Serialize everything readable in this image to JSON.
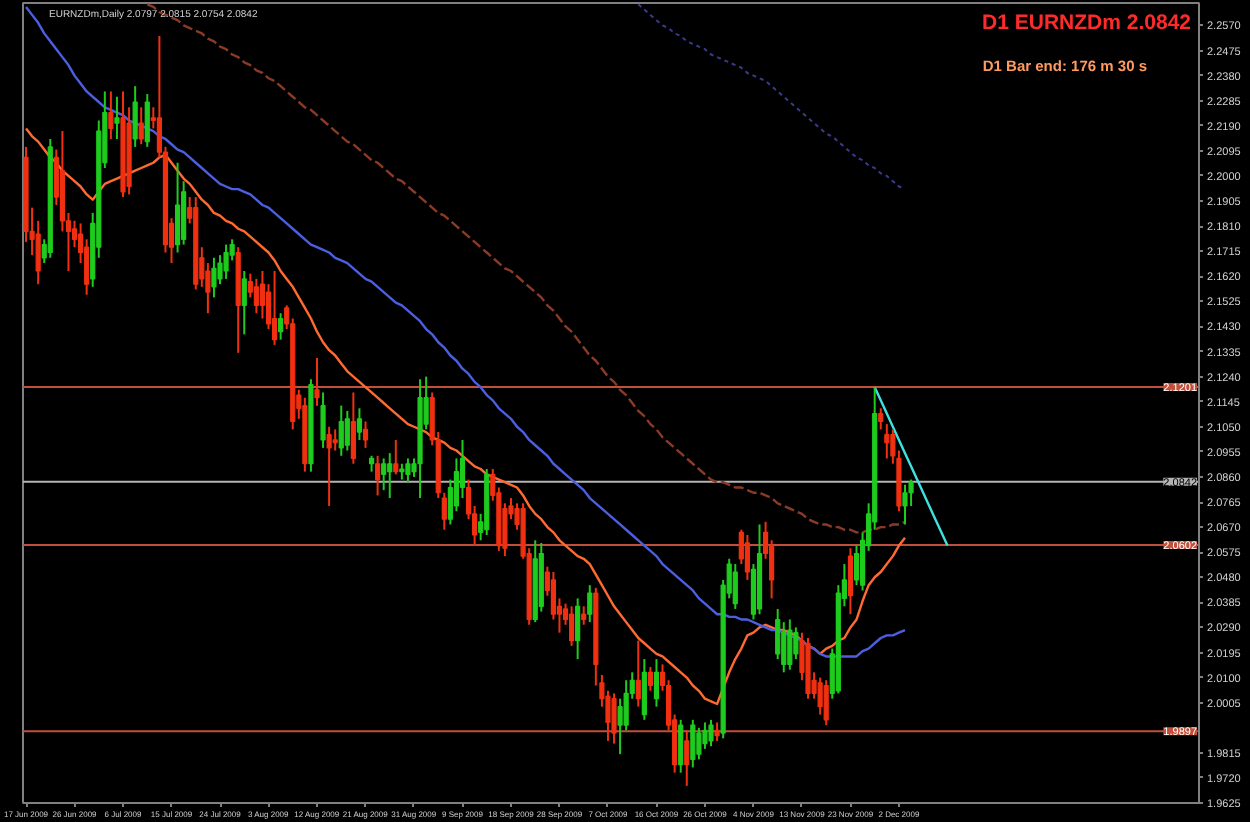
{
  "chart_data": {
    "type": "candlestick",
    "title": "EURNZDm,Daily 2.0797 2.0815 2.0754 2.0842",
    "annotations": [
      "D1 EURNZDm 2.0842",
      "D1 Bar end: 176 m 30 s"
    ],
    "categories": [
      "17 Jun 2009",
      null,
      null,
      null,
      null,
      null,
      null,
      null,
      "26 Jun 2009",
      null,
      null,
      null,
      null,
      null,
      null,
      null,
      "6 Jul 2009",
      null,
      null,
      null,
      null,
      null,
      null,
      null,
      "15 Jul 2009",
      null,
      null,
      null,
      null,
      null,
      null,
      null,
      "24 Jul 2009",
      null,
      null,
      null,
      null,
      null,
      null,
      null,
      "3 Aug 2009",
      null,
      null,
      null,
      null,
      null,
      null,
      null,
      "12 Aug 2009",
      null,
      null,
      null,
      null,
      null,
      null,
      null,
      "21 Aug 2009",
      null,
      null,
      null,
      null,
      null,
      null,
      null,
      "31 Aug 2009",
      null,
      null,
      null,
      null,
      null,
      null,
      null,
      "9 Sep 2009",
      null,
      null,
      null,
      null,
      null,
      null,
      null,
      "18 Sep 2009",
      null,
      null,
      null,
      null,
      null,
      null,
      null,
      "28 Sep 2009",
      null,
      null,
      null,
      null,
      null,
      null,
      null,
      "7 Oct 2009",
      null,
      null,
      null,
      null,
      null,
      null,
      null,
      "16 Oct 2009",
      null,
      null,
      null,
      null,
      null,
      null,
      null,
      "26 Oct 2009",
      null,
      null,
      null,
      null,
      null,
      null,
      null,
      "4 Nov 2009",
      null,
      null,
      null,
      null,
      null,
      null,
      null,
      "13 Nov 2009",
      null,
      null,
      null,
      null,
      null,
      null,
      null,
      "23 Nov 2009",
      null,
      null,
      null,
      null,
      null,
      null,
      null,
      "2 Dec 2009",
      null,
      null,
      null,
      null,
      null,
      null,
      null,
      null,
      null,
      null,
      null,
      null,
      null,
      null,
      null,
      null,
      null,
      null,
      null,
      null,
      null,
      null,
      null,
      null,
      null,
      null,
      null,
      null,
      null,
      null,
      null,
      null,
      null,
      null,
      null,
      null,
      null,
      null,
      null,
      null,
      null,
      null,
      null,
      null,
      null,
      null,
      null,
      null,
      null
    ],
    "ohlc": [
      [
        2.207,
        2.211,
        2.175,
        2.179
      ],
      [
        2.179,
        2.188,
        2.17,
        2.176
      ],
      [
        2.178,
        2.183,
        2.159,
        2.164
      ],
      [
        2.169,
        2.176,
        2.167,
        2.174
      ],
      [
        2.171,
        2.214,
        2.169,
        2.211
      ],
      [
        2.207,
        2.21,
        2.189,
        2.192
      ],
      [
        2.202,
        2.217,
        2.179,
        2.183
      ],
      [
        2.183,
        2.186,
        2.164,
        2.179
      ],
      [
        2.18,
        2.183,
        2.173,
        2.176
      ],
      [
        2.178,
        2.182,
        2.167,
        2.171
      ],
      [
        2.173,
        2.176,
        2.155,
        2.159
      ],
      [
        2.161,
        2.186,
        2.158,
        2.182
      ],
      [
        2.173,
        2.221,
        2.169,
        2.217
      ],
      [
        2.205,
        2.232,
        2.203,
        2.224
      ],
      [
        2.224,
        2.232,
        2.214,
        2.218
      ],
      [
        2.22,
        2.23,
        2.214,
        2.222
      ],
      [
        2.222,
        2.232,
        2.192,
        2.194
      ],
      [
        2.22,
        2.226,
        2.193,
        2.196
      ],
      [
        2.214,
        2.234,
        2.211,
        2.228
      ],
      [
        2.22,
        2.226,
        2.212,
        2.214
      ],
      [
        2.213,
        2.231,
        2.211,
        2.228
      ],
      [
        2.222,
        2.226,
        2.218,
        2.221
      ],
      [
        2.222,
        2.253,
        2.207,
        2.209
      ],
      [
        2.209,
        2.211,
        2.171,
        2.174
      ],
      [
        2.182,
        2.184,
        2.167,
        2.173
      ],
      [
        2.174,
        2.205,
        2.171,
        2.189
      ],
      [
        2.176,
        2.198,
        2.174,
        2.194
      ],
      [
        2.188,
        2.192,
        2.182,
        2.184
      ],
      [
        2.188,
        2.192,
        2.157,
        2.159
      ],
      [
        2.169,
        2.173,
        2.158,
        2.161
      ],
      [
        2.164,
        2.167,
        2.148,
        2.156
      ],
      [
        2.158,
        2.169,
        2.154,
        2.165
      ],
      [
        2.161,
        2.17,
        2.159,
        2.167
      ],
      [
        2.164,
        2.174,
        2.161,
        2.171
      ],
      [
        2.17,
        2.176,
        2.168,
        2.174
      ],
      [
        2.171,
        2.173,
        2.133,
        2.151
      ],
      [
        2.151,
        2.164,
        2.14,
        2.161
      ],
      [
        2.16,
        2.163,
        2.154,
        2.156
      ],
      [
        2.158,
        2.161,
        2.148,
        2.151
      ],
      [
        2.159,
        2.164,
        2.146,
        2.151
      ],
      [
        2.156,
        2.159,
        2.142,
        2.144
      ],
      [
        2.146,
        2.164,
        2.136,
        2.138
      ],
      [
        2.141,
        2.148,
        2.138,
        2.146
      ],
      [
        2.15,
        2.151,
        2.142,
        2.144
      ],
      [
        2.144,
        2.146,
        2.104,
        2.107
      ],
      [
        2.117,
        2.119,
        2.108,
        2.112
      ],
      [
        2.113,
        2.116,
        2.088,
        2.091
      ],
      [
        2.091,
        2.123,
        2.088,
        2.121
      ],
      [
        2.119,
        2.131,
        2.113,
        2.116
      ],
      [
        2.1,
        2.118,
        2.097,
        2.113
      ],
      [
        2.102,
        2.105,
        2.075,
        2.097
      ],
      [
        2.1,
        2.104,
        2.096,
        2.099
      ],
      [
        2.097,
        2.113,
        2.094,
        2.107
      ],
      [
        2.098,
        2.111,
        2.096,
        2.108
      ],
      [
        2.107,
        2.118,
        2.091,
        2.093
      ],
      [
        2.103,
        2.112,
        2.1,
        2.108
      ],
      [
        2.104,
        2.107,
        2.097,
        2.1
      ],
      [
        2.091,
        2.094,
        2.088,
        2.093
      ],
      [
        2.091,
        2.094,
        2.079,
        2.085
      ],
      [
        2.087,
        2.093,
        2.081,
        2.091
      ],
      [
        2.088,
        2.095,
        2.078,
        2.091
      ],
      [
        2.091,
        2.1,
        2.087,
        2.088
      ],
      [
        2.088,
        2.091,
        2.085,
        2.089
      ],
      [
        2.087,
        2.093,
        2.084,
        2.091
      ],
      [
        2.088,
        2.093,
        2.086,
        2.091
      ],
      [
        2.091,
        2.123,
        2.078,
        2.116
      ],
      [
        2.106,
        2.124,
        2.104,
        2.116
      ],
      [
        2.116,
        2.118,
        2.098,
        2.1
      ],
      [
        2.1,
        2.103,
        2.078,
        2.08
      ],
      [
        2.078,
        2.08,
        2.066,
        2.07
      ],
      [
        2.07,
        2.085,
        2.068,
        2.082
      ],
      [
        2.075,
        2.093,
        2.073,
        2.088
      ],
      [
        2.082,
        2.1,
        2.078,
        2.093
      ],
      [
        2.082,
        2.085,
        2.07,
        2.072
      ],
      [
        2.072,
        2.075,
        2.06,
        2.064
      ],
      [
        2.065,
        2.072,
        2.062,
        2.069
      ],
      [
        2.066,
        2.089,
        2.064,
        2.087
      ],
      [
        2.087,
        2.089,
        2.077,
        2.079
      ],
      [
        2.08,
        2.082,
        2.058,
        2.06
      ],
      [
        2.074,
        2.076,
        2.056,
        2.059
      ],
      [
        2.075,
        2.078,
        2.07,
        2.072
      ],
      [
        2.074,
        2.076,
        2.066,
        2.068
      ],
      [
        2.074,
        2.076,
        2.055,
        2.056
      ],
      [
        2.057,
        2.059,
        2.03,
        2.032
      ],
      [
        2.032,
        2.062,
        2.031,
        2.055
      ],
      [
        2.037,
        2.061,
        2.035,
        2.057
      ],
      [
        2.05,
        2.052,
        2.041,
        2.043
      ],
      [
        2.047,
        2.05,
        2.032,
        2.034
      ],
      [
        2.037,
        2.04,
        2.027,
        2.034
      ],
      [
        2.036,
        2.038,
        2.03,
        2.032
      ],
      [
        2.034,
        2.037,
        2.022,
        2.024
      ],
      [
        2.024,
        2.04,
        2.017,
        2.037
      ],
      [
        2.034,
        2.037,
        2.03,
        2.032
      ],
      [
        2.034,
        2.045,
        2.031,
        2.042
      ],
      [
        2.042,
        2.044,
        2.007,
        2.015
      ],
      [
        2.008,
        2.011,
        1.999,
        2.002
      ],
      [
        2.003,
        2.005,
        1.986,
        1.993
      ],
      [
        2.002,
        2.004,
        1.985,
        1.989
      ],
      [
        1.992,
        2.002,
        1.981,
        1.999
      ],
      [
        1.992,
        2.009,
        1.99,
        2.004
      ],
      [
        2.004,
        2.012,
        2.002,
        2.009
      ],
      [
        2.009,
        2.024,
        1.999,
        2.002
      ],
      [
        1.996,
        2.017,
        1.994,
        2.012
      ],
      [
        2.012,
        2.014,
        2.005,
        2.007
      ],
      [
        2.002,
        2.017,
        1.999,
        2.012
      ],
      [
        2.012,
        2.015,
        2.005,
        2.007
      ],
      [
        2.007,
        2.009,
        1.99,
        1.992
      ],
      [
        1.994,
        1.996,
        1.974,
        1.977
      ],
      [
        1.977,
        1.994,
        1.974,
        1.992
      ],
      [
        1.986,
        1.99,
        1.969,
        1.977
      ],
      [
        1.979,
        1.994,
        1.976,
        1.992
      ],
      [
        1.981,
        1.991,
        1.979,
        1.989
      ],
      [
        1.985,
        1.993,
        1.983,
        1.99
      ],
      [
        1.986,
        1.994,
        1.984,
        1.992
      ],
      [
        1.99,
        1.993,
        1.986,
        1.988
      ],
      [
        1.989,
        2.047,
        1.987,
        2.045
      ],
      [
        2.042,
        2.055,
        2.04,
        2.053
      ],
      [
        2.038,
        2.053,
        2.036,
        2.05
      ],
      [
        2.065,
        2.066,
        2.053,
        2.055
      ],
      [
        2.061,
        2.064,
        2.047,
        2.05
      ],
      [
        2.034,
        2.053,
        2.032,
        2.051
      ],
      [
        2.036,
        2.068,
        2.034,
        2.057
      ],
      [
        2.065,
        2.069,
        2.055,
        2.057
      ],
      [
        2.06,
        2.062,
        2.04,
        2.047
      ],
      [
        2.019,
        2.036,
        2.017,
        2.032
      ],
      [
        2.015,
        2.031,
        2.012,
        2.027
      ],
      [
        2.015,
        2.032,
        2.013,
        2.028
      ],
      [
        2.019,
        2.029,
        2.017,
        2.027
      ],
      [
        2.024,
        2.027,
        2.009,
        2.012
      ],
      [
        2.023,
        2.025,
        2.002,
        2.004
      ],
      [
        2.009,
        2.012,
        2.002,
        2.004
      ],
      [
        2.008,
        2.01,
        1.996,
        1.999
      ],
      [
        2.007,
        2.009,
        1.992,
        1.994
      ],
      [
        2.004,
        2.021,
        2.002,
        2.019
      ],
      [
        2.005,
        2.045,
        2.004,
        2.042
      ],
      [
        2.04,
        2.053,
        2.037,
        2.047
      ],
      [
        2.056,
        2.059,
        2.034,
        2.041
      ],
      [
        2.047,
        2.06,
        2.045,
        2.057
      ],
      [
        2.045,
        2.065,
        2.043,
        2.062
      ],
      [
        2.06,
        2.076,
        2.058,
        2.072
      ],
      [
        2.069,
        2.12,
        2.066,
        2.11
      ],
      [
        2.11,
        2.112,
        2.104,
        2.107
      ],
      [
        2.102,
        2.106,
        2.093,
        2.099
      ],
      [
        2.102,
        2.104,
        2.091,
        2.094
      ],
      [
        2.093,
        2.096,
        2.073,
        2.075
      ],
      [
        2.075,
        2.083,
        2.068,
        2.08
      ],
      [
        2.08,
        2.085,
        2.075,
        2.084
      ],
      null,
      null,
      null,
      null,
      null,
      null,
      null,
      null,
      null,
      null,
      null,
      null,
      null,
      null,
      null,
      null,
      null,
      null,
      null,
      null,
      null,
      null,
      null,
      null,
      null,
      null,
      null,
      null,
      null,
      null,
      null,
      null,
      null,
      null,
      null,
      null,
      null,
      null,
      null,
      null,
      null,
      null,
      null,
      null,
      null,
      null,
      null
    ],
    "colors": [
      "#f03010",
      "#f03010",
      "#f03010",
      "#1ecc1e",
      "#1ecc1e",
      "#f03010",
      "#f03010",
      "#f03010",
      "#f03010",
      "#f03010",
      "#f03010",
      "#1ecc1e",
      "#1ecc1e",
      "#1ecc1e",
      "#f03010",
      "#1ecc1e",
      "#f03010",
      "#f03010",
      "#1ecc1e",
      "#f03010",
      "#1ecc1e",
      "#f03010",
      "#f03010",
      "#f03010",
      "#f03010",
      "#1ecc1e",
      "#1ecc1e",
      "#f03010",
      "#f03010",
      "#f03010",
      "#f03010",
      "#1ecc1e",
      "#1ecc1e",
      "#1ecc1e",
      "#1ecc1e",
      "#f03010",
      "#1ecc1e",
      "#f03010",
      "#f03010",
      "#f03010",
      "#f03010",
      "#f03010",
      "#1ecc1e",
      "#f03010",
      "#f03010",
      "#f03010",
      "#f03010",
      "#1ecc1e",
      "#f03010",
      "#1ecc1e",
      "#f03010",
      "#f03010",
      "#1ecc1e",
      "#1ecc1e",
      "#f03010",
      "#1ecc1e",
      "#f03010",
      "#1ecc1e",
      "#f03010",
      "#1ecc1e",
      "#1ecc1e",
      "#f03010",
      "#1ecc1e",
      "#1ecc1e",
      "#1ecc1e",
      "#1ecc1e",
      "#1ecc1e",
      "#f03010",
      "#f03010",
      "#f03010",
      "#1ecc1e",
      "#1ecc1e",
      "#1ecc1e",
      "#f03010",
      "#f03010",
      "#1ecc1e",
      "#1ecc1e",
      "#f03010",
      "#f03010",
      "#f03010",
      "#f03010",
      "#f03010",
      "#f03010",
      "#f03010",
      "#1ecc1e",
      "#1ecc1e",
      "#f03010",
      "#f03010",
      "#f03010",
      "#f03010",
      "#f03010",
      "#1ecc1e",
      "#f03010",
      "#1ecc1e",
      "#f03010",
      "#f03010",
      "#f03010",
      "#f03010",
      "#1ecc1e",
      "#1ecc1e",
      "#1ecc1e",
      "#f03010",
      "#1ecc1e",
      "#f03010",
      "#1ecc1e",
      "#f03010",
      "#f03010",
      "#f03010",
      "#1ecc1e",
      "#f03010",
      "#1ecc1e",
      "#1ecc1e",
      "#1ecc1e",
      "#1ecc1e",
      "#f03010",
      "#1ecc1e",
      "#1ecc1e",
      "#1ecc1e",
      "#f03010",
      "#f03010",
      "#1ecc1e",
      "#1ecc1e",
      "#f03010",
      "#f03010",
      "#1ecc1e",
      "#1ecc1e",
      "#1ecc1e",
      "#1ecc1e",
      "#f03010",
      "#f03010",
      "#f03010",
      "#f03010",
      "#f03010",
      "#1ecc1e",
      "#1ecc1e",
      "#1ecc1e",
      "#f03010",
      "#1ecc1e",
      "#1ecc1e",
      "#1ecc1e",
      "#1ecc1e",
      "#f03010",
      "#f03010",
      "#f03010",
      "#f03010",
      "#1ecc1e",
      "#1ecc1e",
      null,
      null,
      null,
      null,
      null,
      null,
      null,
      null,
      null,
      null,
      null,
      null,
      null,
      null,
      null,
      null,
      null,
      null,
      null,
      null,
      null,
      null,
      null,
      null,
      null,
      null,
      null,
      null,
      null,
      null,
      null,
      null,
      null,
      null,
      null,
      null,
      null,
      null,
      null,
      null,
      null,
      null,
      null,
      null,
      null,
      null,
      null
    ],
    "series": [
      {
        "type": "line",
        "color": "#ff6a33",
        "values": [
          2.218,
          2.215,
          2.213,
          2.21,
          2.207,
          2.205,
          2.202,
          2.2,
          2.198,
          2.196,
          2.193,
          2.191,
          2.194,
          2.197,
          2.198,
          2.199,
          2.2,
          2.201,
          2.202,
          2.203,
          2.204,
          2.205,
          2.207,
          2.208,
          2.205,
          2.202,
          2.199,
          2.197,
          2.194,
          2.191,
          2.189,
          2.186,
          2.185,
          2.183,
          2.182,
          2.18,
          2.179,
          2.177,
          2.175,
          2.173,
          2.171,
          2.168,
          2.164,
          2.161,
          2.158,
          2.154,
          2.15,
          2.146,
          2.141,
          2.137,
          2.134,
          2.132,
          2.129,
          2.126,
          2.124,
          2.122,
          2.12,
          2.118,
          2.116,
          2.114,
          2.112,
          2.11,
          2.108,
          2.106,
          2.105,
          2.104,
          2.103,
          2.101,
          2.1,
          2.099,
          2.097,
          2.096,
          2.094,
          2.092,
          2.09,
          2.089,
          2.087,
          2.086,
          2.085,
          2.084,
          2.083,
          2.082,
          2.079,
          2.075,
          2.072,
          2.07,
          2.067,
          2.065,
          2.062,
          2.06,
          2.058,
          2.056,
          2.055,
          2.053,
          2.049,
          2.045,
          2.041,
          2.037,
          2.034,
          2.031,
          2.028,
          2.025,
          2.023,
          2.021,
          2.019,
          2.018,
          2.016,
          2.014,
          2.012,
          2.01,
          2.007,
          2.005,
          2.002,
          2.001,
          2.0,
          2.006,
          2.012,
          2.017,
          2.021,
          2.026,
          2.027,
          2.029,
          2.03,
          2.029,
          2.028,
          2.028,
          2.027,
          2.026,
          2.024,
          2.022,
          2.021,
          2.019,
          2.021,
          2.022,
          2.024,
          2.025,
          2.029,
          2.032,
          2.039,
          2.045,
          2.048,
          2.05,
          2.053,
          2.056,
          2.06,
          2.063,
          null,
          null,
          null,
          null,
          null,
          null,
          null,
          null,
          null,
          null,
          null,
          null,
          null,
          null,
          null,
          null,
          null,
          null,
          null,
          null,
          null,
          null,
          null,
          null,
          null,
          null,
          null,
          null,
          null,
          null,
          null,
          null,
          null,
          null,
          null,
          null,
          null,
          null,
          null,
          null,
          null,
          null,
          null,
          null,
          null,
          null,
          null,
          null
        ]
      },
      {
        "type": "line",
        "color": "#4b5fe0",
        "values": [
          2.264,
          2.261,
          2.258,
          2.254,
          2.251,
          2.248,
          2.245,
          2.242,
          2.238,
          2.235,
          2.232,
          2.23,
          2.228,
          2.226,
          2.225,
          2.224,
          2.223,
          2.221,
          2.22,
          2.219,
          2.218,
          2.217,
          2.215,
          2.214,
          2.212,
          2.21,
          2.209,
          2.207,
          2.205,
          2.203,
          2.201,
          2.199,
          2.197,
          2.196,
          2.195,
          2.195,
          2.194,
          2.193,
          2.191,
          2.189,
          2.188,
          2.186,
          2.184,
          2.182,
          2.18,
          2.178,
          2.176,
          2.174,
          2.173,
          2.172,
          2.171,
          2.169,
          2.168,
          2.167,
          2.165,
          2.163,
          2.161,
          2.16,
          2.158,
          2.156,
          2.154,
          2.152,
          2.151,
          2.149,
          2.147,
          2.145,
          2.142,
          2.14,
          2.137,
          2.135,
          2.132,
          2.13,
          2.127,
          2.125,
          2.122,
          2.12,
          2.117,
          2.115,
          2.112,
          2.11,
          2.108,
          2.105,
          2.103,
          2.1,
          2.098,
          2.096,
          2.094,
          2.091,
          2.089,
          2.087,
          2.085,
          2.083,
          2.081,
          2.078,
          2.076,
          2.074,
          2.072,
          2.07,
          2.068,
          2.066,
          2.064,
          2.062,
          2.06,
          2.058,
          2.056,
          2.053,
          2.051,
          2.049,
          2.047,
          2.045,
          2.043,
          2.04,
          2.038,
          2.036,
          2.034,
          2.034,
          2.033,
          2.033,
          2.032,
          2.032,
          2.031,
          2.03,
          2.029,
          2.028,
          2.028,
          2.027,
          2.026,
          2.025,
          2.024,
          2.022,
          2.021,
          2.019,
          2.018,
          2.018,
          2.018,
          2.018,
          2.018,
          2.018,
          2.02,
          2.021,
          2.023,
          2.025,
          2.026,
          2.026,
          2.027,
          2.028,
          null,
          null,
          null,
          null,
          null,
          null,
          null,
          null,
          null,
          null,
          null,
          null,
          null,
          null,
          null,
          null,
          null,
          null,
          null,
          null,
          null,
          null,
          null,
          null,
          null,
          null,
          null,
          null,
          null,
          null,
          null,
          null,
          null,
          null,
          null,
          null,
          null,
          null,
          null,
          null,
          null,
          null,
          null,
          null,
          null,
          null,
          null,
          null
        ]
      },
      {
        "type": "line",
        "color": "#8b3a26",
        "line_style": "dashed",
        "values": [
          null,
          null,
          null,
          null,
          null,
          null,
          null,
          null,
          null,
          null,
          null,
          null,
          null,
          null,
          null,
          null,
          null,
          null,
          null,
          null,
          2.265,
          2.264,
          2.262,
          2.261,
          2.26,
          2.259,
          2.257,
          2.256,
          2.255,
          2.254,
          2.252,
          2.251,
          2.249,
          2.248,
          2.246,
          2.245,
          2.243,
          2.242,
          2.24,
          2.239,
          2.237,
          2.236,
          2.234,
          2.232,
          2.23,
          2.228,
          2.226,
          2.225,
          2.223,
          2.221,
          2.219,
          2.217,
          2.215,
          2.213,
          2.212,
          2.21,
          2.208,
          2.206,
          2.205,
          2.203,
          2.201,
          2.199,
          2.198,
          2.196,
          2.194,
          2.192,
          2.19,
          2.188,
          2.186,
          2.185,
          2.183,
          2.181,
          2.179,
          2.177,
          2.175,
          2.173,
          2.171,
          2.169,
          2.167,
          2.165,
          2.164,
          2.162,
          2.16,
          2.158,
          2.156,
          2.154,
          2.151,
          2.149,
          2.146,
          2.143,
          2.141,
          2.138,
          2.135,
          2.132,
          2.13,
          2.127,
          2.124,
          2.122,
          2.119,
          2.117,
          2.114,
          2.111,
          2.109,
          2.106,
          2.104,
          2.101,
          2.099,
          2.097,
          2.095,
          2.093,
          2.091,
          2.089,
          2.087,
          2.085,
          2.084,
          2.084,
          2.083,
          2.082,
          2.082,
          2.081,
          2.08,
          2.08,
          2.079,
          2.078,
          2.076,
          2.075,
          2.074,
          2.073,
          2.072,
          2.07,
          2.069,
          2.068,
          2.068,
          2.067,
          2.067,
          2.066,
          2.066,
          2.065,
          2.065,
          2.066,
          2.066,
          2.067,
          2.067,
          2.068,
          2.068,
          2.069,
          null,
          null,
          null,
          null,
          null,
          null,
          null,
          null,
          null,
          null,
          null,
          null,
          null,
          null,
          null,
          null,
          null,
          null,
          null,
          null,
          null,
          null,
          null,
          null,
          null,
          null,
          null,
          null,
          null,
          null,
          null,
          null,
          null,
          null,
          null,
          null,
          null,
          null,
          null,
          null,
          null,
          null,
          null,
          null,
          null,
          null,
          null,
          null
        ]
      },
      {
        "type": "line",
        "color": "#3a3a8c",
        "line_style": "dotted",
        "values": [
          null,
          null,
          null,
          null,
          null,
          null,
          null,
          null,
          null,
          null,
          null,
          null,
          null,
          null,
          null,
          null,
          null,
          null,
          null,
          null,
          null,
          null,
          null,
          null,
          null,
          null,
          null,
          null,
          null,
          null,
          null,
          null,
          null,
          null,
          null,
          null,
          null,
          null,
          null,
          null,
          null,
          null,
          null,
          null,
          null,
          null,
          null,
          null,
          null,
          null,
          null,
          null,
          null,
          null,
          null,
          null,
          null,
          null,
          null,
          null,
          null,
          null,
          null,
          null,
          null,
          null,
          null,
          null,
          null,
          null,
          null,
          null,
          null,
          null,
          null,
          null,
          null,
          null,
          null,
          null,
          null,
          null,
          null,
          null,
          null,
          null,
          null,
          null,
          null,
          null,
          null,
          null,
          null,
          null,
          null,
          null,
          null,
          null,
          null,
          null,
          null,
          2.265,
          2.263,
          2.261,
          2.259,
          2.257,
          2.256,
          2.254,
          2.253,
          2.251,
          2.25,
          2.249,
          2.248,
          2.246,
          2.245,
          2.244,
          2.243,
          2.242,
          2.241,
          2.239,
          2.238,
          2.237,
          2.236,
          2.234,
          2.232,
          2.23,
          2.228,
          2.226,
          2.224,
          2.222,
          2.22,
          2.218,
          2.216,
          2.215,
          2.213,
          2.211,
          2.209,
          2.207,
          2.206,
          2.204,
          2.203,
          2.201,
          2.2,
          2.198,
          2.196,
          2.195,
          null,
          null,
          null,
          null,
          null,
          null,
          null,
          null,
          null,
          null,
          null,
          null,
          null,
          null,
          null,
          null,
          null,
          null,
          null,
          null,
          null,
          null,
          null,
          null,
          null,
          null,
          null,
          null,
          null,
          null,
          null,
          null,
          null,
          null,
          null,
          null,
          null,
          null,
          null,
          null,
          null,
          null,
          null,
          null,
          null,
          null,
          null,
          null
        ]
      },
      {
        "type": "line",
        "color": "#40e0e0",
        "values": [
          null,
          null,
          null,
          null,
          null,
          null,
          null,
          null,
          null,
          null,
          null,
          null,
          null,
          null,
          null,
          null,
          null,
          null,
          null,
          null,
          null,
          null,
          null,
          null,
          null,
          null,
          null,
          null,
          null,
          null,
          null,
          null,
          null,
          null,
          null,
          null,
          null,
          null,
          null,
          null,
          null,
          null,
          null,
          null,
          null,
          null,
          null,
          null,
          null,
          null,
          null,
          null,
          null,
          null,
          null,
          null,
          null,
          null,
          null,
          null,
          null,
          null,
          null,
          null,
          null,
          null,
          null,
          null,
          null,
          null,
          null,
          null,
          null,
          null,
          null,
          null,
          null,
          null,
          null,
          null,
          null,
          null,
          null,
          null,
          null,
          null,
          null,
          null,
          null,
          null,
          null,
          null,
          null,
          null,
          null,
          null,
          null,
          null,
          null,
          null,
          null,
          null,
          null,
          null,
          null,
          null,
          null,
          null,
          null,
          null,
          null,
          null,
          null,
          null,
          null,
          null,
          null,
          null,
          null,
          null,
          null,
          null,
          null,
          null,
          null,
          null,
          null,
          null,
          null,
          null,
          null,
          null,
          null,
          null,
          null,
          null,
          null,
          null,
          null,
          null,
          2.12,
          2.115,
          2.11,
          2.105,
          2.1,
          2.095,
          2.09,
          2.085,
          2.08,
          2.075,
          2.07,
          2.065,
          2.06,
          null,
          null,
          null,
          null,
          null,
          null,
          null,
          null,
          null,
          null,
          null,
          null,
          null,
          null,
          null,
          null,
          null,
          null,
          null,
          null,
          null,
          null,
          null,
          null,
          null,
          null,
          null,
          null,
          null,
          null,
          null,
          null,
          null,
          null,
          null,
          null,
          null,
          null,
          null,
          null,
          null
        ]
      }
    ],
    "ylim": [
      1.9625,
      2.2655
    ],
    "yticks": [
      {
        "value": 2.257,
        "label": "2.2570"
      },
      2.2475,
      {
        "value": 2.238,
        "label": "2.2380"
      },
      2.2285,
      {
        "value": 2.219,
        "label": "2.2190"
      },
      2.2095,
      {
        "value": 2.2,
        "label": "2.2000"
      },
      2.1905,
      {
        "value": 2.181,
        "label": "2.1810"
      },
      2.1715,
      {
        "value": 2.162,
        "label": "2.1620"
      },
      2.1525,
      {
        "value": 2.143,
        "label": "2.1430"
      },
      2.1335,
      {
        "value": 2.124,
        "label": "2.1240"
      },
      2.1145,
      {
        "value": 2.105,
        "label": "2.1050"
      },
      2.0955,
      {
        "value": 2.086,
        "label": "2.0860"
      },
      2.0765,
      {
        "value": 2.067,
        "label": "2.0670"
      },
      2.0575,
      {
        "value": 2.048,
        "label": "2.0480"
      },
      2.0385,
      {
        "value": 2.029,
        "label": "2.0290"
      },
      2.0195,
      {
        "value": 2.01,
        "label": "2.0100"
      },
      2.0005,
      1.9815,
      {
        "value": 1.972,
        "label": "1.9720"
      },
      1.9625
    ],
    "ref_lines": [
      {
        "axis": "y",
        "value": 2.1201,
        "label": "2.1201",
        "color": "#c0503c"
      },
      {
        "axis": "y",
        "value": 2.0842,
        "label": "2.0842",
        "color": "#b4b4b4"
      },
      {
        "axis": "y",
        "value": 2.0602,
        "label": "2.0602",
        "color": "#c0503c"
      },
      {
        "axis": "y",
        "value": 1.9897,
        "label": "1.9897",
        "color": "#c0503c"
      }
    ]
  }
}
